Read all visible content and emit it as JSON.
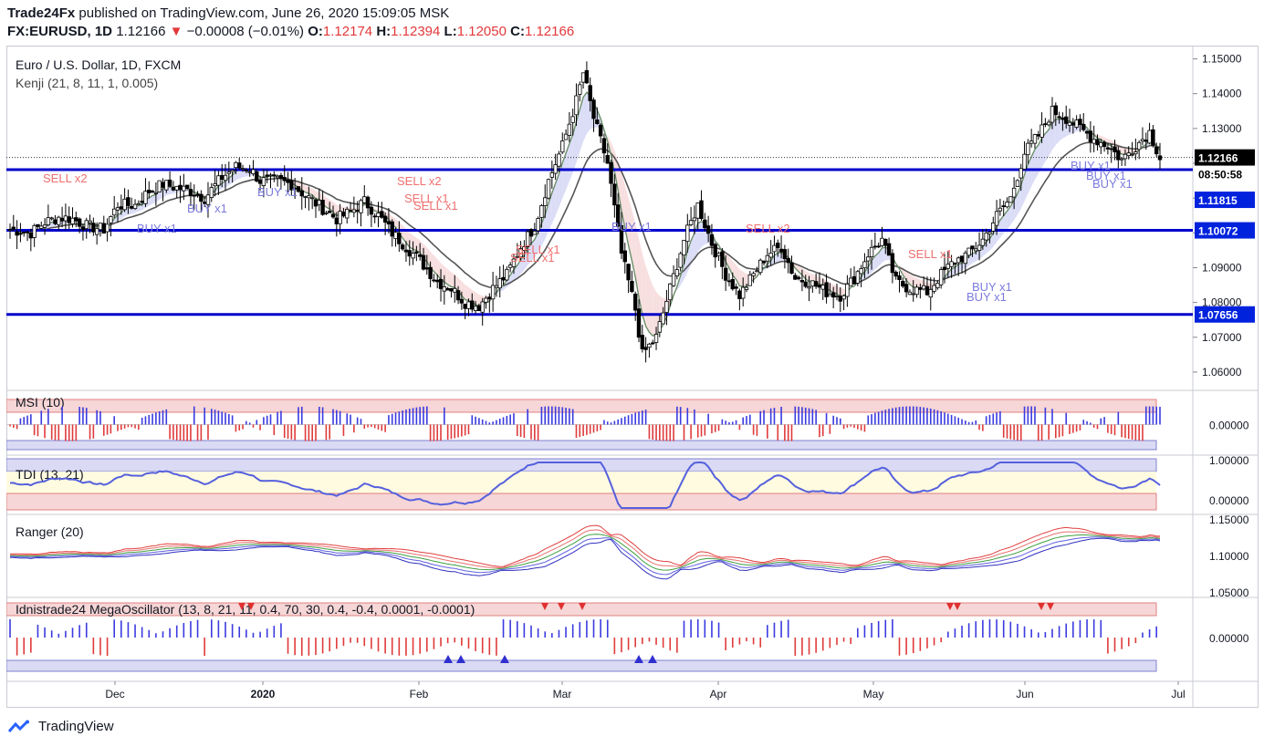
{
  "header": {
    "publisher": "Trade24Fx",
    "published_text": "published on TradingView.com, June 26, 2020 15:09:05 MSK",
    "symbol": "FX:EURUSD, 1D",
    "last": "1.12166",
    "change": "−0.00008 (−0.01%)",
    "open_label": "O:",
    "open": "1.12174",
    "high_label": "H:",
    "high": "1.12394",
    "low_label": "L:",
    "low": "1.12050",
    "close_label": "C:",
    "close": "1.12166"
  },
  "footer": {
    "brand": "TradingView"
  },
  "colors": {
    "level_line": "#0000cc",
    "bull_candle": "#ffffff",
    "bear_candle": "#000000",
    "sell": "#f06f6f",
    "buy": "#7b7bdd",
    "price_tag": "#0022dd"
  },
  "chart_data": [
    {
      "type": "candlestick",
      "title": "Euro / U.S. Dollar, 1D, FXCM",
      "indicator_label": "Kenji (21, 8, 11, 1, 0.005)",
      "x_ticks": [
        "Dec",
        "2020",
        "Feb",
        "Mar",
        "Apr",
        "May",
        "Jun",
        "Jul"
      ],
      "y_ticks": [
        "1.15000",
        "1.14000",
        "1.13000",
        "1.12000",
        "1.11000",
        "1.10000",
        "1.09000",
        "1.08000",
        "1.07000",
        "1.06000"
      ],
      "ylim": [
        1.055,
        1.1525
      ],
      "horizontal_levels": [
        1.11815,
        1.10072,
        1.07656
      ],
      "price_tags": {
        "last": "1.12166",
        "countdown": "08:50:58",
        "levels": [
          "1.11815",
          "1.10072",
          "1.07656"
        ]
      },
      "close_path": [
        [
          0,
          1.101
        ],
        [
          6,
          1.1
        ],
        [
          10,
          1.103
        ],
        [
          14,
          1.1045
        ],
        [
          18,
          1.104
        ],
        [
          22,
          1.102
        ],
        [
          27,
          1.101
        ],
        [
          31,
          1.108
        ],
        [
          36,
          1.108
        ],
        [
          40,
          1.112
        ],
        [
          44,
          1.114
        ],
        [
          48,
          1.113
        ],
        [
          52,
          1.112
        ],
        [
          56,
          1.11
        ],
        [
          61,
          1.116
        ],
        [
          65,
          1.119
        ],
        [
          69,
          1.1185
        ],
        [
          72,
          1.115
        ],
        [
          77,
          1.115
        ],
        [
          81,
          1.114
        ],
        [
          86,
          1.11
        ],
        [
          90,
          1.107
        ],
        [
          94,
          1.104
        ],
        [
          98,
          1.106
        ],
        [
          102,
          1.109
        ],
        [
          106,
          1.105
        ],
        [
          110,
          1.1
        ],
        [
          114,
          1.096
        ],
        [
          118,
          1.092
        ],
        [
          123,
          1.086
        ],
        [
          127,
          1.084
        ],
        [
          131,
          1.08
        ],
        [
          135,
          1.079
        ],
        [
          139,
          1.084
        ],
        [
          143,
          1.088
        ],
        [
          147,
          1.096
        ],
        [
          151,
          1.102
        ],
        [
          155,
          1.115
        ],
        [
          159,
          1.125
        ],
        [
          163,
          1.138
        ],
        [
          165,
          1.146
        ],
        [
          168,
          1.133
        ],
        [
          172,
          1.12
        ],
        [
          176,
          1.094
        ],
        [
          180,
          1.078
        ],
        [
          182,
          1.065
        ],
        [
          186,
          1.07
        ],
        [
          190,
          1.084
        ],
        [
          194,
          1.098
        ],
        [
          198,
          1.108
        ],
        [
          202,
          1.097
        ],
        [
          206,
          1.088
        ],
        [
          210,
          1.082
        ],
        [
          214,
          1.088
        ],
        [
          218,
          1.094
        ],
        [
          222,
          1.096
        ],
        [
          226,
          1.087
        ],
        [
          230,
          1.086
        ],
        [
          235,
          1.083
        ],
        [
          239,
          1.082
        ],
        [
          243,
          1.087
        ],
        [
          247,
          1.094
        ],
        [
          251,
          1.098
        ],
        [
          255,
          1.086
        ],
        [
          259,
          1.084
        ],
        [
          264,
          1.083
        ],
        [
          268,
          1.088
        ],
        [
          272,
          1.092
        ],
        [
          276,
          1.094
        ],
        [
          280,
          1.098
        ],
        [
          284,
          1.105
        ],
        [
          288,
          1.11
        ],
        [
          292,
          1.123
        ],
        [
          296,
          1.128
        ],
        [
          300,
          1.135
        ],
        [
          304,
          1.133
        ],
        [
          308,
          1.13
        ],
        [
          312,
          1.127
        ],
        [
          316,
          1.125
        ],
        [
          320,
          1.121
        ],
        [
          324,
          1.125
        ],
        [
          328,
          1.129
        ],
        [
          331,
          1.1217
        ]
      ],
      "signals": [
        {
          "text": "SELL x2",
          "type": "sell"
        },
        {
          "text": "BUY x1",
          "type": "buy"
        },
        {
          "text": "BUY x1",
          "type": "buy"
        },
        {
          "text": "BUY x1",
          "type": "buy"
        },
        {
          "text": "SELL x2",
          "type": "sell"
        },
        {
          "text": "SELL x1",
          "type": "sell"
        },
        {
          "text": "SELL x1",
          "type": "sell"
        },
        {
          "text": "SELL x1",
          "type": "sell"
        },
        {
          "text": "SELL x1",
          "type": "sell"
        },
        {
          "text": "BUY x1",
          "type": "buy"
        },
        {
          "text": "SELL x2",
          "type": "sell"
        },
        {
          "text": "SELL x1",
          "type": "sell"
        },
        {
          "text": "BUY x1",
          "type": "buy"
        },
        {
          "text": "BUY x1",
          "type": "buy"
        },
        {
          "text": "BUY x1",
          "type": "buy"
        },
        {
          "text": "BUY x1",
          "type": "buy"
        },
        {
          "text": "BUY x1",
          "type": "buy"
        }
      ]
    },
    {
      "type": "histogram",
      "title": "MSI (10)",
      "y_ticks": [
        "0.00000"
      ],
      "signs": "---++++--+-+---+----+++--++---+-------++++++++-------+--+-+++++++---++-+-+++-++----++----++--+++-++-++-------++++++++++++----+-------+++++++++++++---+---++++++++++--------+++++++++++++--------++-+-+---+---+++++-+++--++-++-+---+++++++--+-+++-------++++++++++++++++++++++++++++++++--+++++---"
    },
    {
      "type": "line",
      "title": "TDI (13, 21)",
      "y_ticks": [
        "1.00000",
        "0.00000"
      ]
    },
    {
      "type": "line",
      "title": "Ranger (20)",
      "y_ticks": [
        "1.15000",
        "1.10000",
        "1.05000"
      ]
    },
    {
      "type": "histogram",
      "title": "Idnistrade24 MegaOscillator (13, 8, 21, 11, 0.4, 70, 30, 0.4, -0.4, 0.0001, -0.0001)",
      "y_ticks": [
        "0.00000"
      ]
    }
  ]
}
